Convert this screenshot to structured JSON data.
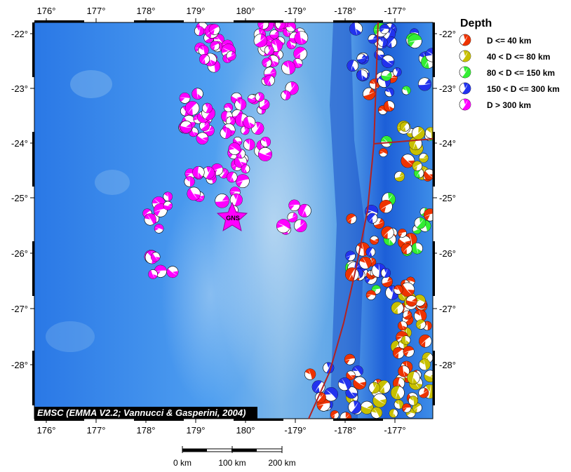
{
  "map": {
    "credit": "EMSC (EMMA V2.2; Vannucci & Gasperini, 2004)",
    "station_label": "GNS",
    "lon_ticks": [
      "176°",
      "177°",
      "178°",
      "179°",
      "180°",
      "-179°",
      "-178°",
      "-177°"
    ],
    "lat_ticks": [
      "-22°",
      "-23°",
      "-24°",
      "-25°",
      "-26°",
      "-27°",
      "-28°"
    ],
    "colors": {
      "ocean_deep": "#1e6be0",
      "ocean_mid": "#4c9aea",
      "ocean_ridge": "#8cbce8",
      "plate_boundary": "#b22222",
      "station_star": "#ff00ff"
    }
  },
  "legend": {
    "title": "Depth",
    "items": [
      {
        "label": "D <= 40 km",
        "color": "#ee3300"
      },
      {
        "label": "40 < D <= 80 km",
        "color": "#c8c000"
      },
      {
        "label": "80 < D <= 150 km",
        "color": "#33ee33"
      },
      {
        "label": "150 < D <= 300 km",
        "color": "#2233ee"
      },
      {
        "label": "D > 300 km",
        "color": "#ff00ff"
      }
    ]
  },
  "scale_bar": {
    "labels": [
      "0 km",
      "100 km",
      "200 km"
    ]
  }
}
